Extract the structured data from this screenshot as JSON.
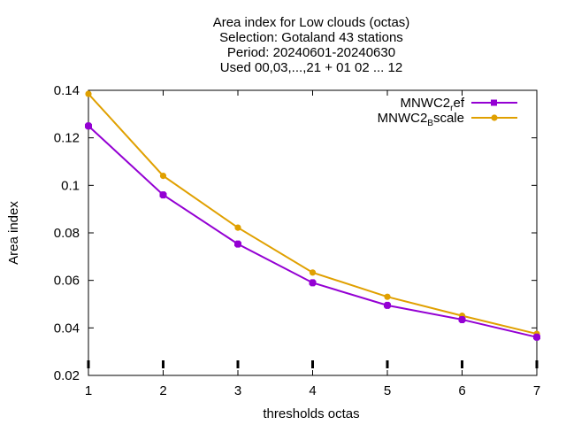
{
  "chart_data": {
    "type": "line",
    "title_lines": [
      "Area index  for Low clouds (octas)",
      "Selection: Gotaland     43 stations",
      "Period: 20240601-20240630",
      "Used 00,03,...,21 + 01 02 ... 12"
    ],
    "xlabel": "thresholds octas",
    "ylabel": "Area index",
    "x": [
      1,
      2,
      3,
      4,
      5,
      6,
      7
    ],
    "xlim": [
      1,
      7
    ],
    "ylim": [
      0.02,
      0.14
    ],
    "x_ticks": [
      "1",
      "2",
      "3",
      "4",
      "5",
      "6",
      "7"
    ],
    "y_ticks": [
      "0.02",
      "0.04",
      "0.06",
      "0.08",
      "0.1",
      "0.12",
      "0.14"
    ],
    "y_tick_values": [
      0.02,
      0.04,
      0.06,
      0.08,
      0.1,
      0.12,
      0.14
    ],
    "grid": false,
    "legend_position": "top-right",
    "series": [
      {
        "name": "MNWC2_ref",
        "legend_main": "MNWC2",
        "legend_sub": "r",
        "legend_tail": "ef",
        "color": "#9400d3",
        "values": [
          0.125,
          0.096,
          0.0753,
          0.059,
          0.0495,
          0.0435,
          0.0361
        ]
      },
      {
        "name": "MNWC2_Bscale",
        "legend_main": "MNWC2",
        "legend_sub": "B",
        "legend_tail": "scale",
        "color": "#e0a000",
        "values": [
          0.1385,
          0.104,
          0.0822,
          0.0633,
          0.0531,
          0.0451,
          0.0375
        ]
      }
    ]
  }
}
